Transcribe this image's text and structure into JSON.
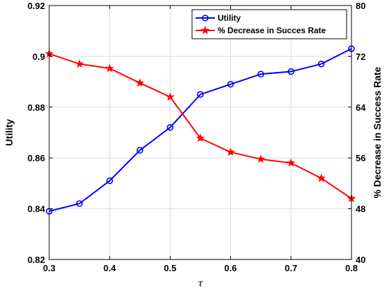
{
  "chart_data": {
    "type": "line",
    "xlabel": "τ",
    "ylabel": "Utility",
    "y2label": "% Decrease in Success Rate",
    "xlim": [
      0.3,
      0.8
    ],
    "ylim": [
      0.82,
      0.92
    ],
    "y2lim": [
      40,
      80
    ],
    "xticks": [
      "0.3",
      "0.4",
      "0.5",
      "0.6",
      "0.7",
      "0.8"
    ],
    "xtick_values": [
      0.3,
      0.4,
      0.5,
      0.6,
      0.7,
      0.8
    ],
    "yticks": [
      "0.82",
      "0.84",
      "0.86",
      "0.88",
      "0.9",
      "0.92"
    ],
    "ytick_values": [
      0.82,
      0.84,
      0.86,
      0.88,
      0.9,
      0.92
    ],
    "y2ticks": [
      "40",
      "48",
      "56",
      "64",
      "72",
      "80"
    ],
    "y2tick_values": [
      40,
      48,
      56,
      64,
      72,
      80
    ],
    "grid": true,
    "legend_position": "top-right",
    "x": [
      0.3,
      0.35,
      0.4,
      0.45,
      0.5,
      0.55,
      0.6,
      0.65,
      0.7,
      0.75,
      0.8
    ],
    "series": [
      {
        "name": "Utility",
        "axis": "left",
        "color": "#0000ff",
        "marker": "circle",
        "values": [
          0.839,
          0.842,
          0.851,
          0.863,
          0.872,
          0.885,
          0.889,
          0.893,
          0.894,
          0.897,
          0.903
        ]
      },
      {
        "name": "% Decrease in Succes Rate",
        "axis": "right",
        "color": "#ff0000",
        "marker": "star",
        "values": [
          72.4,
          70.8,
          70.1,
          67.8,
          65.6,
          59.1,
          56.9,
          55.8,
          55.2,
          52.8,
          49.6
        ]
      }
    ]
  }
}
